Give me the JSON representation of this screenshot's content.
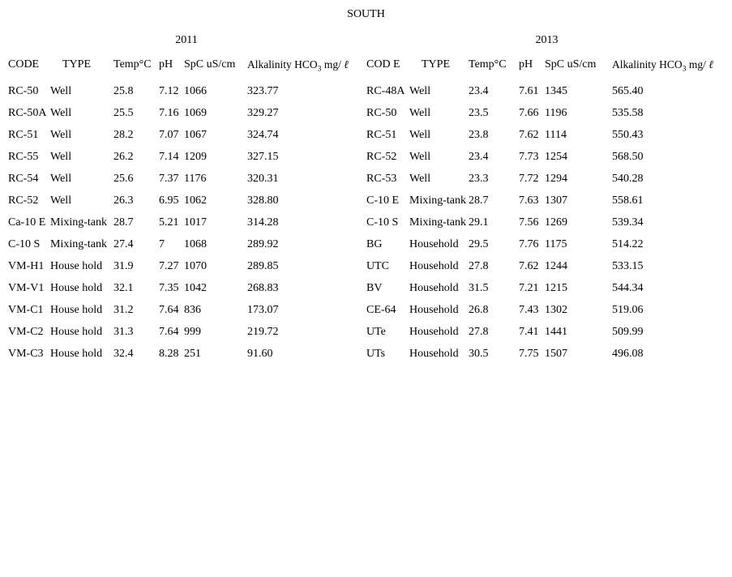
{
  "title": "SOUTH",
  "colors": {
    "text": "#000000",
    "background": "#ffffff"
  },
  "tables": [
    {
      "year": "2011",
      "columns": [
        "CODE",
        "TYPE",
        "Temp°C",
        "pH",
        "SpC uS/cm"
      ],
      "alk_header": {
        "pre": "Alkalinity HCO",
        "sub": "3",
        "post": " mg/ ",
        "liter": "ℓ"
      },
      "rows": [
        [
          "RC-50",
          "Well",
          "25.8",
          "7.12",
          "1066",
          "323.77"
        ],
        [
          "RC-50A",
          "Well",
          "25.5",
          "7.16",
          "1069",
          "329.27"
        ],
        [
          "RC-51",
          "Well",
          "28.2",
          "7.07",
          "1067",
          "324.74"
        ],
        [
          "RC-55",
          "Well",
          "26.2",
          "7.14",
          "1209",
          "327.15"
        ],
        [
          "RC-54",
          "Well",
          "25.6",
          "7.37",
          "1176",
          "320.31"
        ],
        [
          "RC-52",
          "Well",
          "26.3",
          "6.95",
          "1062",
          "328.80"
        ],
        [
          "Ca-10 E",
          "Mixing-tank",
          "28.7",
          "5.21",
          "1017",
          "314.28"
        ],
        [
          "C-10 S",
          "Mixing-tank",
          "27.4",
          "7",
          "1068",
          "289.92"
        ],
        [
          "VM-H1",
          "House hold",
          "31.9",
          "7.27",
          "1070",
          "289.85"
        ],
        [
          "VM-V1",
          "House hold",
          "32.1",
          "7.35",
          "1042",
          "268.83"
        ],
        [
          "VM-C1",
          "House hold",
          "31.2",
          "7.64",
          "836",
          "173.07"
        ],
        [
          "VM-C2",
          "House hold",
          "31.3",
          "7.64",
          "999",
          "219.72"
        ],
        [
          "VM-C3",
          "House hold",
          "32.4",
          "8.28",
          "251",
          "91.60"
        ]
      ]
    },
    {
      "year": "2013",
      "columns": [
        "COD E",
        "TYPE",
        "Temp°C",
        "pH",
        "SpC uS/cm"
      ],
      "alk_header": {
        "pre": "Alkalinity HCO",
        "sub": "3",
        "post": " mg/ ",
        "liter": "ℓ"
      },
      "rows": [
        [
          "RC-48A",
          "Well",
          "23.4",
          "7.61",
          "1345",
          "565.40"
        ],
        [
          "RC-50",
          "Well",
          "23.5",
          "7.66",
          "1196",
          "535.58"
        ],
        [
          "RC-51",
          "Well",
          "23.8",
          "7.62",
          "1114",
          "550.43"
        ],
        [
          "RC-52",
          "Well",
          "23.4",
          "7.73",
          "1254",
          "568.50"
        ],
        [
          "RC-53",
          "Well",
          "23.3",
          "7.72",
          "1294",
          "540.28"
        ],
        [
          "C-10 E",
          "Mixing-tank",
          "28.7",
          "7.63",
          "1307",
          "558.61"
        ],
        [
          "C-10 S",
          "Mixing-tank",
          "29.1",
          "7.56",
          "1269",
          "539.34"
        ],
        [
          "BG",
          "Household",
          "29.5",
          "7.76",
          "1175",
          "514.22"
        ],
        [
          "UTC",
          "Household",
          "27.8",
          "7.62",
          "1244",
          "533.15"
        ],
        [
          "BV",
          "Household",
          "31.5",
          "7.21",
          "1215",
          "544.34"
        ],
        [
          "CE-64",
          "Household",
          "26.8",
          "7.43",
          "1302",
          "519.06"
        ],
        [
          "UTe",
          "Household",
          "27.8",
          "7.41",
          "1441",
          "509.99"
        ],
        [
          "UTs",
          "Household",
          "30.5",
          "7.75",
          "1507",
          "496.08"
        ]
      ]
    }
  ]
}
